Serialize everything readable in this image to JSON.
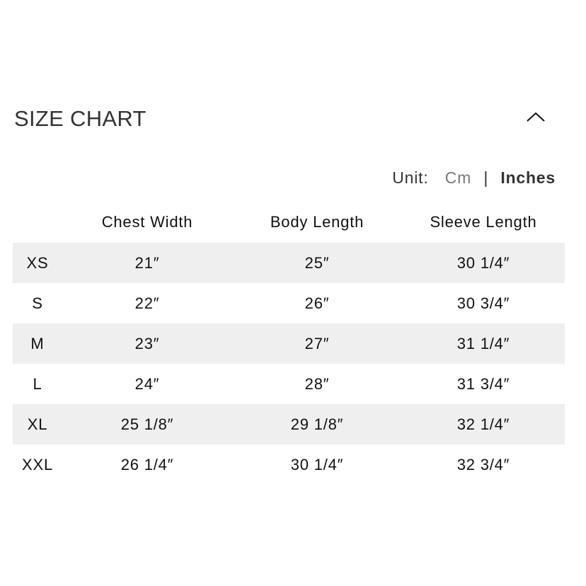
{
  "header": {
    "title": "SIZE CHART",
    "collapse_icon": "chevron-up-icon"
  },
  "unit": {
    "label": "Unit:",
    "cm": "Cm",
    "separator": "|",
    "inches": "Inches",
    "selected": "Inches"
  },
  "table": {
    "columns": [
      "",
      "Chest Width",
      "Body Length",
      "Sleeve Length"
    ],
    "rows": [
      [
        "XS",
        "21″",
        "25″",
        "30 1/4″"
      ],
      [
        "S",
        "22″",
        "26″",
        "30 3/4″"
      ],
      [
        "M",
        "23″",
        "27″",
        "31 1/4″"
      ],
      [
        "L",
        "24″",
        "28″",
        "31 3/4″"
      ],
      [
        "XL",
        "25 1/8″",
        "29 1/8″",
        "32 1/4″"
      ],
      [
        "XXL",
        "26 1/4″",
        "30 1/4″",
        "32 3/4″"
      ]
    ]
  },
  "colors": {
    "stripe": "#efefef",
    "text": "#111111",
    "muted": "#777777"
  }
}
